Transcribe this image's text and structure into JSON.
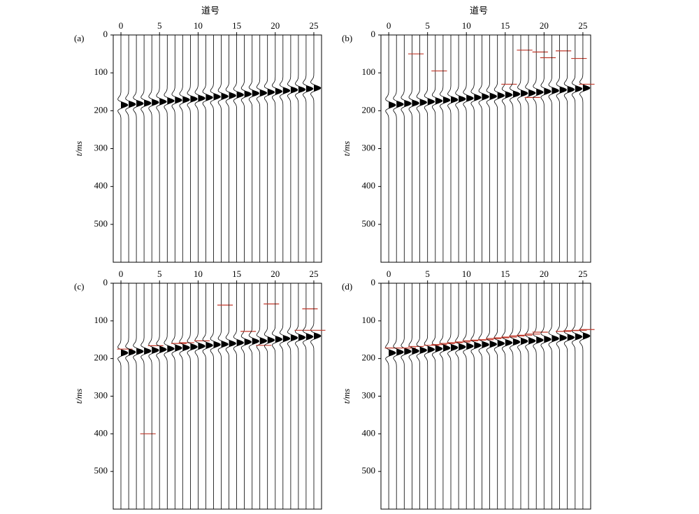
{
  "chart_data": [
    {
      "type": "wiggle",
      "label": "(a)",
      "x_label": "道号",
      "y_label": "t/ms",
      "xlim": [
        -1,
        26
      ],
      "ylim": [
        0,
        600
      ],
      "xticks": [
        0,
        5,
        10,
        15,
        20,
        25
      ],
      "yticks": [
        0,
        100,
        200,
        300,
        400,
        500
      ],
      "x": [
        0,
        1,
        2,
        3,
        4,
        5,
        6,
        7,
        8,
        9,
        10,
        11,
        12,
        13,
        14,
        15,
        16,
        17,
        18,
        19,
        20,
        21,
        22,
        23,
        24,
        25
      ],
      "values": [
        185,
        183,
        181,
        180,
        178,
        176,
        174,
        172,
        171,
        169,
        167,
        165,
        163,
        162,
        160,
        158,
        156,
        154,
        153,
        151,
        149,
        147,
        145,
        144,
        142,
        140
      ],
      "pick_color": "#c0392b",
      "picks": [
        null,
        null,
        null,
        null,
        null,
        null,
        null,
        null,
        null,
        null,
        null,
        null,
        null,
        null,
        null,
        null,
        null,
        null,
        null,
        null,
        null,
        null,
        null,
        null,
        null,
        null
      ]
    },
    {
      "type": "wiggle",
      "label": "(b)",
      "x_label": "道号",
      "y_label": "t/ms",
      "xlim": [
        -1,
        26
      ],
      "ylim": [
        0,
        600
      ],
      "xticks": [
        0,
        5,
        10,
        15,
        20,
        25
      ],
      "yticks": [
        0,
        100,
        200,
        300,
        400,
        500
      ],
      "x": [
        0,
        1,
        2,
        3,
        4,
        5,
        6,
        7,
        8,
        9,
        10,
        11,
        12,
        13,
        14,
        15,
        16,
        17,
        18,
        19,
        20,
        21,
        22,
        23,
        24,
        25
      ],
      "values": [
        185,
        183,
        181,
        180,
        178,
        176,
        174,
        172,
        171,
        169,
        167,
        165,
        163,
        162,
        160,
        158,
        156,
        154,
        153,
        151,
        149,
        147,
        145,
        144,
        142,
        140
      ],
      "pick_color": "#c0392b",
      "picks": [
        null,
        null,
        null,
        50,
        null,
        null,
        95,
        null,
        null,
        null,
        null,
        null,
        null,
        null,
        null,
        130,
        null,
        40,
        165,
        45,
        60,
        null,
        42,
        null,
        62,
        130
      ]
    },
    {
      "type": "wiggle",
      "label": "(c)",
      "y_label": "t/ms",
      "xlim": [
        -1,
        26
      ],
      "ylim": [
        0,
        600
      ],
      "xticks": [
        0,
        5,
        10,
        15,
        20,
        25
      ],
      "yticks": [
        0,
        100,
        200,
        300,
        400,
        500
      ],
      "x": [
        0,
        1,
        2,
        3,
        4,
        5,
        6,
        7,
        8,
        9,
        10,
        11,
        12,
        13,
        14,
        15,
        16,
        17,
        18,
        19,
        20,
        21,
        22,
        23,
        24,
        25
      ],
      "values": [
        185,
        183,
        181,
        180,
        178,
        176,
        174,
        172,
        171,
        169,
        167,
        165,
        163,
        162,
        160,
        158,
        156,
        154,
        153,
        151,
        149,
        147,
        145,
        144,
        142,
        140
      ],
      "pick_color": "#c0392b",
      "picks": [
        175,
        null,
        null,
        400,
        166,
        null,
        null,
        160,
        158,
        null,
        153,
        null,
        null,
        58,
        null,
        null,
        128,
        null,
        165,
        55,
        null,
        null,
        null,
        125,
        68,
        125
      ]
    },
    {
      "type": "wiggle",
      "label": "(d)",
      "y_label": "t/ms",
      "xlim": [
        -1,
        26
      ],
      "ylim": [
        0,
        600
      ],
      "xticks": [
        0,
        5,
        10,
        15,
        20,
        25
      ],
      "yticks": [
        0,
        100,
        200,
        300,
        400,
        500
      ],
      "x": [
        0,
        1,
        2,
        3,
        4,
        5,
        6,
        7,
        8,
        9,
        10,
        11,
        12,
        13,
        14,
        15,
        16,
        17,
        18,
        19,
        20,
        21,
        22,
        23,
        24,
        25
      ],
      "values": [
        185,
        183,
        181,
        180,
        178,
        176,
        174,
        172,
        171,
        169,
        167,
        165,
        163,
        162,
        160,
        158,
        156,
        154,
        153,
        151,
        149,
        147,
        145,
        144,
        142,
        140
      ],
      "pick_color": "#c0392b",
      "picks": [
        172,
        null,
        172,
        168,
        null,
        165,
        163,
        160,
        158,
        156,
        153,
        151,
        150,
        147,
        145,
        143,
        140,
        138,
        135,
        130,
        null,
        null,
        128,
        126,
        125,
        123
      ]
    }
  ]
}
